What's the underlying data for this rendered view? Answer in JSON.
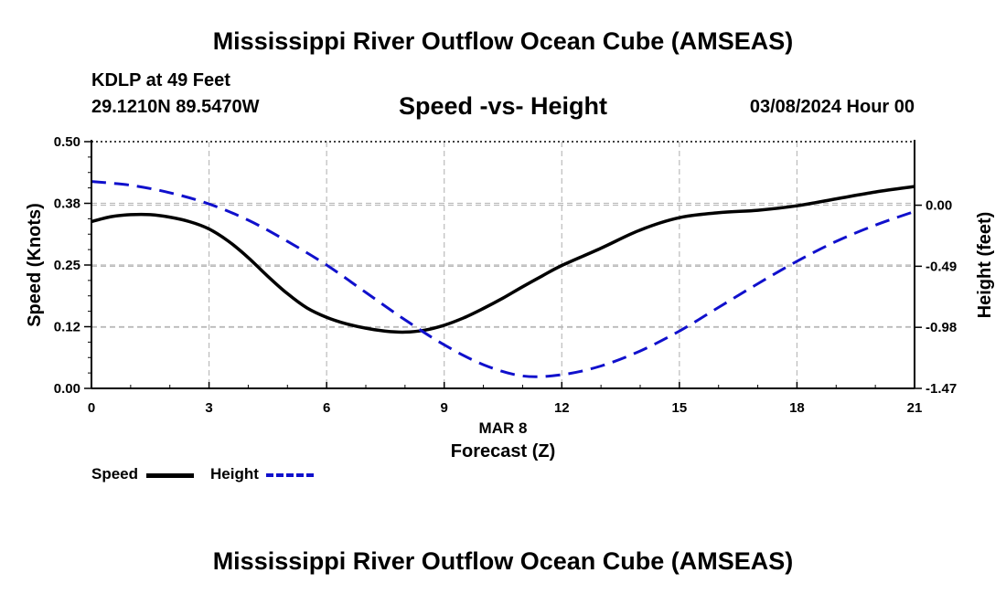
{
  "header": {
    "title": "Mississippi River Outflow Ocean Cube (AMSEAS)",
    "station": "KDLP at 49 Feet",
    "coords": "29.1210N  89.5470W",
    "subtitle": "Speed -vs- Height",
    "datetime": "03/08/2024 Hour 00"
  },
  "footer": {
    "title": "Mississippi River Outflow Ocean Cube (AMSEAS)"
  },
  "legend": {
    "speed": "Speed",
    "height": "Height"
  },
  "colors": {
    "speed": "#000000",
    "height": "#1010cc",
    "grid": "#bbbbbb"
  },
  "chart_data": {
    "type": "line",
    "title": "Speed -vs- Height",
    "xlabel": "Forecast (Z)",
    "xsublabel": "MAR 8",
    "ylabel": "Speed (Knots)",
    "y2label": "Height (feet)",
    "xlim": [
      0,
      21
    ],
    "ylim": [
      0,
      0.5
    ],
    "y2lim": [
      -1.47,
      0.51
    ],
    "xticks": [
      0,
      3,
      6,
      9,
      12,
      15,
      18,
      21
    ],
    "xtick_labels": [
      "0",
      "3",
      "6",
      "9",
      "12",
      "15",
      "18",
      "21"
    ],
    "yticks": [
      0,
      0.125,
      0.25,
      0.375,
      0.5
    ],
    "ytick_labels": [
      "0.00",
      "0.12",
      "0.25",
      "0.38",
      "0.50"
    ],
    "y2ticks": [
      0,
      -0.49,
      -0.98,
      -1.47
    ],
    "y2tick_labels": [
      "0.00",
      "-0.49",
      "-0.98",
      "-1.47"
    ],
    "grid": true,
    "series": [
      {
        "name": "Speed",
        "axis": "left",
        "x": [
          0,
          0.5,
          1,
          1.5,
          2,
          2.5,
          3,
          3.5,
          4,
          4.5,
          5,
          5.5,
          6,
          6.5,
          7,
          7.5,
          8,
          8.5,
          9,
          9.5,
          10,
          10.5,
          11,
          11.5,
          12,
          13,
          14,
          15,
          16,
          17,
          18,
          19,
          20,
          21
        ],
        "values": [
          0.338,
          0.348,
          0.352,
          0.352,
          0.347,
          0.338,
          0.323,
          0.298,
          0.265,
          0.227,
          0.192,
          0.163,
          0.144,
          0.131,
          0.122,
          0.116,
          0.114,
          0.118,
          0.128,
          0.143,
          0.162,
          0.183,
          0.206,
          0.228,
          0.249,
          0.284,
          0.321,
          0.346,
          0.356,
          0.361,
          0.37,
          0.384,
          0.398,
          0.409
        ]
      },
      {
        "name": "Height",
        "axis": "right",
        "x": [
          0,
          1,
          2,
          3,
          4,
          5,
          6,
          7,
          8,
          9,
          10,
          11,
          12,
          13,
          14,
          15,
          16,
          17,
          18,
          19,
          20,
          21
        ],
        "values": [
          0.19,
          0.16,
          0.1,
          0.01,
          -0.12,
          -0.29,
          -0.48,
          -0.7,
          -0.92,
          -1.12,
          -1.28,
          -1.37,
          -1.36,
          -1.29,
          -1.17,
          -1.01,
          -0.82,
          -0.63,
          -0.45,
          -0.29,
          -0.16,
          -0.05
        ]
      }
    ]
  }
}
